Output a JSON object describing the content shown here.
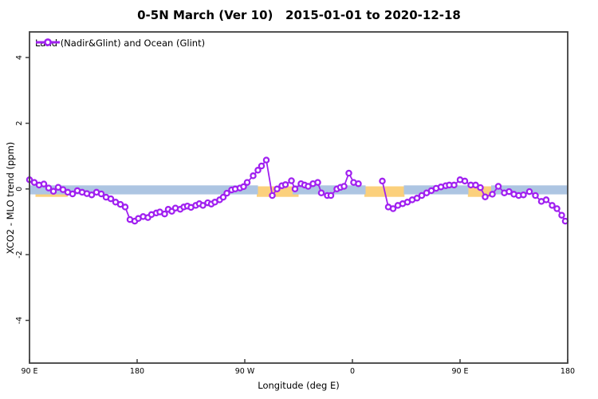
{
  "title": "0-5N March (Ver 10)   2015-01-01 to 2020-12-18",
  "legend": {
    "label": "Land (Nadir&Glint) and Ocean (Glint)"
  },
  "colors": {
    "series": "#A020F0",
    "marker_fill": "#ffffff",
    "band_blue": "#ADC5E2",
    "band_yellow": "#FBD07C",
    "frame": "#3f3f3f"
  },
  "chart_data": {
    "type": "line",
    "title": "0-5N March (Ver 10)   2015-01-01 to 2020-12-18",
    "xlabel": "Longitude (deg E)",
    "ylabel": "XCO2 - MLO trend (ppm)",
    "xlim": [
      90,
      540
    ],
    "ylim": [
      -5.3,
      4.78
    ],
    "grid": false,
    "legend_position": "top-left",
    "xticks": [
      {
        "lon": 90,
        "label": "90 E"
      },
      {
        "lon": 180,
        "label": "180"
      },
      {
        "lon": 270,
        "label": "90 W"
      },
      {
        "lon": 360,
        "label": "0"
      },
      {
        "lon": 450,
        "label": "90 E"
      },
      {
        "lon": 540,
        "label": "180"
      }
    ],
    "yticks": [
      {
        "v": -4,
        "label": "-4"
      },
      {
        "v": -2,
        "label": "-2"
      },
      {
        "v": 0,
        "label": "0"
      },
      {
        "v": 2,
        "label": "2"
      },
      {
        "v": 4,
        "label": "4"
      }
    ],
    "bands": {
      "blue": {
        "y": [
          -0.165,
          0.11
        ],
        "segments": [
          [
            90,
            281
          ],
          [
            310,
            371
          ],
          [
            403,
            457
          ],
          [
            476,
            540
          ]
        ]
      },
      "yellow": {
        "y": [
          -0.24,
          0.08
        ],
        "segments": [
          [
            95,
            122
          ],
          [
            280,
            315
          ],
          [
            370,
            403.5
          ],
          [
            456.5,
            477
          ]
        ]
      }
    },
    "series": [
      {
        "name": "Land (Nadir&Glint) and Ocean (Glint)",
        "segments": [
          [
            [
              90,
              0.28
            ],
            [
              94,
              0.2
            ],
            [
              98,
              0.12
            ],
            [
              102,
              0.15
            ],
            [
              106,
              0.03
            ],
            [
              110,
              -0.07
            ],
            [
              114,
              0.05
            ],
            [
              118,
              -0.02
            ],
            [
              122,
              -0.1
            ],
            [
              126,
              -0.15
            ],
            [
              130,
              -0.05
            ],
            [
              134,
              -0.1
            ],
            [
              138,
              -0.14
            ],
            [
              142,
              -0.18
            ],
            [
              146,
              -0.1
            ],
            [
              150,
              -0.15
            ],
            [
              154,
              -0.25
            ],
            [
              158,
              -0.3
            ],
            [
              162,
              -0.4
            ],
            [
              166,
              -0.47
            ],
            [
              170,
              -0.55
            ],
            [
              174,
              -0.93
            ],
            [
              178,
              -0.98
            ],
            [
              181,
              -0.9
            ],
            [
              185,
              -0.84
            ],
            [
              189,
              -0.87
            ],
            [
              192,
              -0.78
            ],
            [
              196,
              -0.73
            ],
            [
              199,
              -0.7
            ],
            [
              203,
              -0.76
            ],
            [
              206,
              -0.62
            ],
            [
              209,
              -0.68
            ],
            [
              212,
              -0.58
            ],
            [
              216,
              -0.62
            ],
            [
              219,
              -0.55
            ],
            [
              222,
              -0.52
            ],
            [
              225,
              -0.56
            ],
            [
              229,
              -0.5
            ],
            [
              232,
              -0.45
            ],
            [
              235,
              -0.5
            ],
            [
              239,
              -0.42
            ],
            [
              242,
              -0.46
            ],
            [
              245,
              -0.4
            ],
            [
              249,
              -0.33
            ],
            [
              252,
              -0.25
            ],
            [
              255,
              -0.13
            ],
            [
              259,
              -0.03
            ],
            [
              262,
              0.0
            ],
            [
              266,
              0.03
            ],
            [
              269,
              0.07
            ],
            [
              272,
              0.2
            ],
            [
              277,
              0.4
            ],
            [
              281,
              0.57
            ],
            [
              284,
              0.7
            ],
            [
              288,
              0.88
            ],
            [
              293,
              -0.2
            ],
            [
              297,
              0.0
            ],
            [
              301,
              0.1
            ],
            [
              304,
              0.13
            ],
            [
              309,
              0.25
            ],
            [
              312,
              0.0
            ],
            [
              317,
              0.16
            ],
            [
              320,
              0.12
            ],
            [
              323,
              0.08
            ],
            [
              327,
              0.16
            ],
            [
              331,
              0.2
            ],
            [
              334,
              -0.12
            ],
            [
              339,
              -0.2
            ],
            [
              342,
              -0.2
            ],
            [
              347,
              0.0
            ],
            [
              350,
              0.05
            ],
            [
              353,
              0.08
            ],
            [
              357,
              0.48
            ],
            [
              361,
              0.2
            ],
            [
              365,
              0.16
            ]
          ],
          [
            [
              385,
              0.24
            ],
            [
              390,
              -0.55
            ],
            [
              394,
              -0.6
            ],
            [
              398,
              -0.5
            ],
            [
              402,
              -0.45
            ],
            [
              406,
              -0.4
            ],
            [
              410,
              -0.33
            ],
            [
              414,
              -0.28
            ],
            [
              418,
              -0.2
            ],
            [
              422,
              -0.12
            ],
            [
              426,
              -0.05
            ],
            [
              430,
              0.02
            ],
            [
              434,
              0.06
            ],
            [
              438,
              0.1
            ],
            [
              441,
              0.12
            ],
            [
              445,
              0.12
            ],
            [
              450,
              0.28
            ],
            [
              454,
              0.24
            ],
            [
              459,
              0.12
            ],
            [
              463,
              0.12
            ],
            [
              467,
              0.04
            ],
            [
              471,
              -0.24
            ],
            [
              477,
              -0.16
            ],
            [
              482,
              0.08
            ],
            [
              487,
              -0.12
            ],
            [
              491,
              -0.08
            ],
            [
              495,
              -0.16
            ],
            [
              499,
              -0.2
            ],
            [
              503,
              -0.18
            ],
            [
              508,
              -0.08
            ],
            [
              513,
              -0.2
            ],
            [
              518,
              -0.38
            ],
            [
              522,
              -0.33
            ],
            [
              527,
              -0.5
            ],
            [
              531,
              -0.6
            ],
            [
              535,
              -0.8
            ],
            [
              538,
              -0.98
            ]
          ]
        ]
      }
    ]
  }
}
